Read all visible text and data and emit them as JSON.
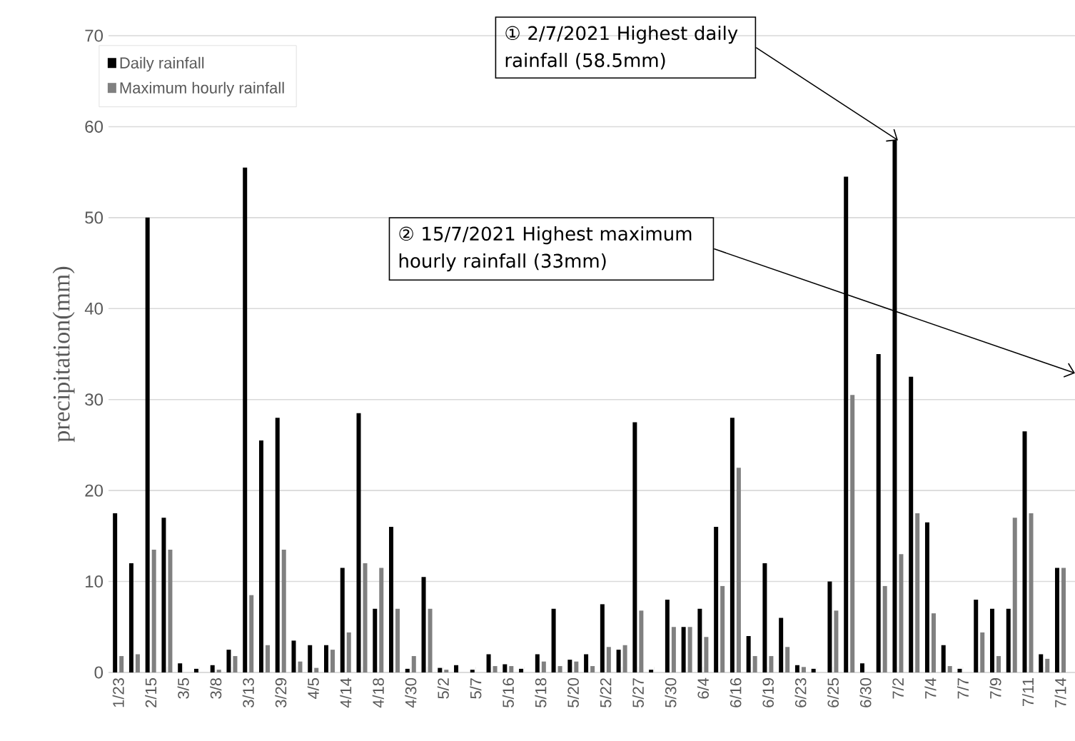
{
  "chart_data": {
    "type": "bar",
    "ylabel": "precipitation(mm)",
    "categories": [
      "1/23",
      null,
      "2/15",
      null,
      "3/5",
      null,
      "3/8",
      null,
      "3/13",
      null,
      "3/29",
      null,
      "4/5",
      null,
      "4/14",
      null,
      "4/18",
      null,
      "4/30",
      null,
      "5/2",
      null,
      "5/7",
      null,
      "5/16",
      null,
      "5/18",
      null,
      "5/20",
      null,
      "5/22",
      null,
      "5/27",
      null,
      "5/30",
      null,
      "6/4",
      null,
      "6/16",
      null,
      "6/19",
      null,
      "6/23",
      null,
      "6/25",
      null,
      "6/30",
      null,
      "7/2",
      null,
      "7/4",
      null,
      "7/7",
      null,
      "7/9",
      null,
      "7/11",
      null,
      "7/14"
    ],
    "series": [
      {
        "name": "Daily rainfall",
        "color": "#000000",
        "values": [
          17.5,
          12,
          50,
          17,
          1,
          0.4,
          0.8,
          2.5,
          55.5,
          25.5,
          28,
          3.5,
          3,
          3,
          11.5,
          28.5,
          7,
          16,
          0.4,
          10.5,
          0.5,
          0.8,
          0.3,
          2,
          0.9,
          0.4,
          2,
          7,
          1.4,
          2,
          7.5,
          2.5,
          27.5,
          0.3,
          8,
          5,
          7,
          16,
          28,
          4,
          12,
          6,
          0.8,
          0.4,
          10,
          54.5,
          1,
          35,
          58.5,
          32.5,
          16.5,
          3,
          0.4,
          8,
          7,
          7,
          26.5,
          2,
          11.5
        ]
      },
      {
        "name": "Maximum hourly rainfall",
        "color": "#808080",
        "values": [
          1.8,
          2,
          13.5,
          13.5,
          0,
          0,
          0.3,
          1.8,
          8.5,
          3,
          13.5,
          1.2,
          0.5,
          2.5,
          4.4,
          12,
          11.5,
          7,
          1.8,
          7,
          0.3,
          0,
          0,
          0.7,
          0.7,
          0,
          1.2,
          0.7,
          1.2,
          0.7,
          2.8,
          3,
          6.8,
          0,
          5,
          5,
          3.9,
          9.5,
          22.5,
          1.8,
          1.8,
          2.8,
          0.6,
          0,
          6.8,
          30.5,
          0,
          9.5,
          13,
          17.5,
          6.5,
          0.7,
          0,
          4.4,
          1.8,
          17,
          17.5,
          1.5,
          11.5
        ]
      }
    ],
    "ylim": [
      0,
      70
    ],
    "yticks": [
      0,
      10,
      20,
      30,
      40,
      50,
      60,
      70
    ],
    "grid": "y",
    "legend": "top left",
    "annotations": [
      {
        "text": "① 2/7/2021 Highest daily rainfall (58.5mm)",
        "x": "7/2",
        "y": 58.5
      },
      "② 15/7/2021 Highest maximum hourly rainfall (33mm)"
    ]
  }
}
